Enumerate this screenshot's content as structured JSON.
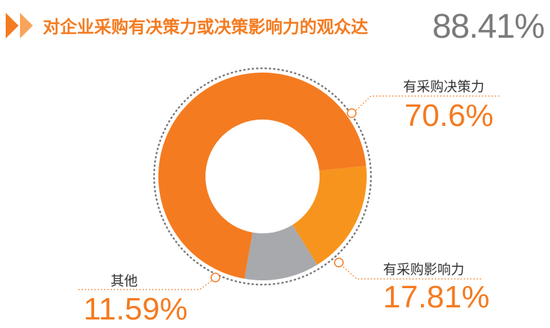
{
  "header": {
    "title": "对企业采购有决策力或决策影响力的观众达",
    "value": "88.41%"
  },
  "colors": {
    "accent": "#f47b20",
    "accent_light": "#f7941d",
    "gray": "#a7a9ac",
    "text_gray": "#7a7a7a"
  },
  "chart_data": {
    "type": "pie",
    "title": "对企业采购有决策力或决策影响力的观众达",
    "total_highlight": "88.41%",
    "slices": [
      {
        "name": "有采购决策力",
        "value": 70.6,
        "label": "70.6%",
        "color": "#f47b20"
      },
      {
        "name": "有采购影响力",
        "value": 17.81,
        "label": "17.81%",
        "color": "#f7941d"
      },
      {
        "name": "其他",
        "value": 11.59,
        "label": "11.59%",
        "color": "#a7a9ac"
      }
    ]
  }
}
